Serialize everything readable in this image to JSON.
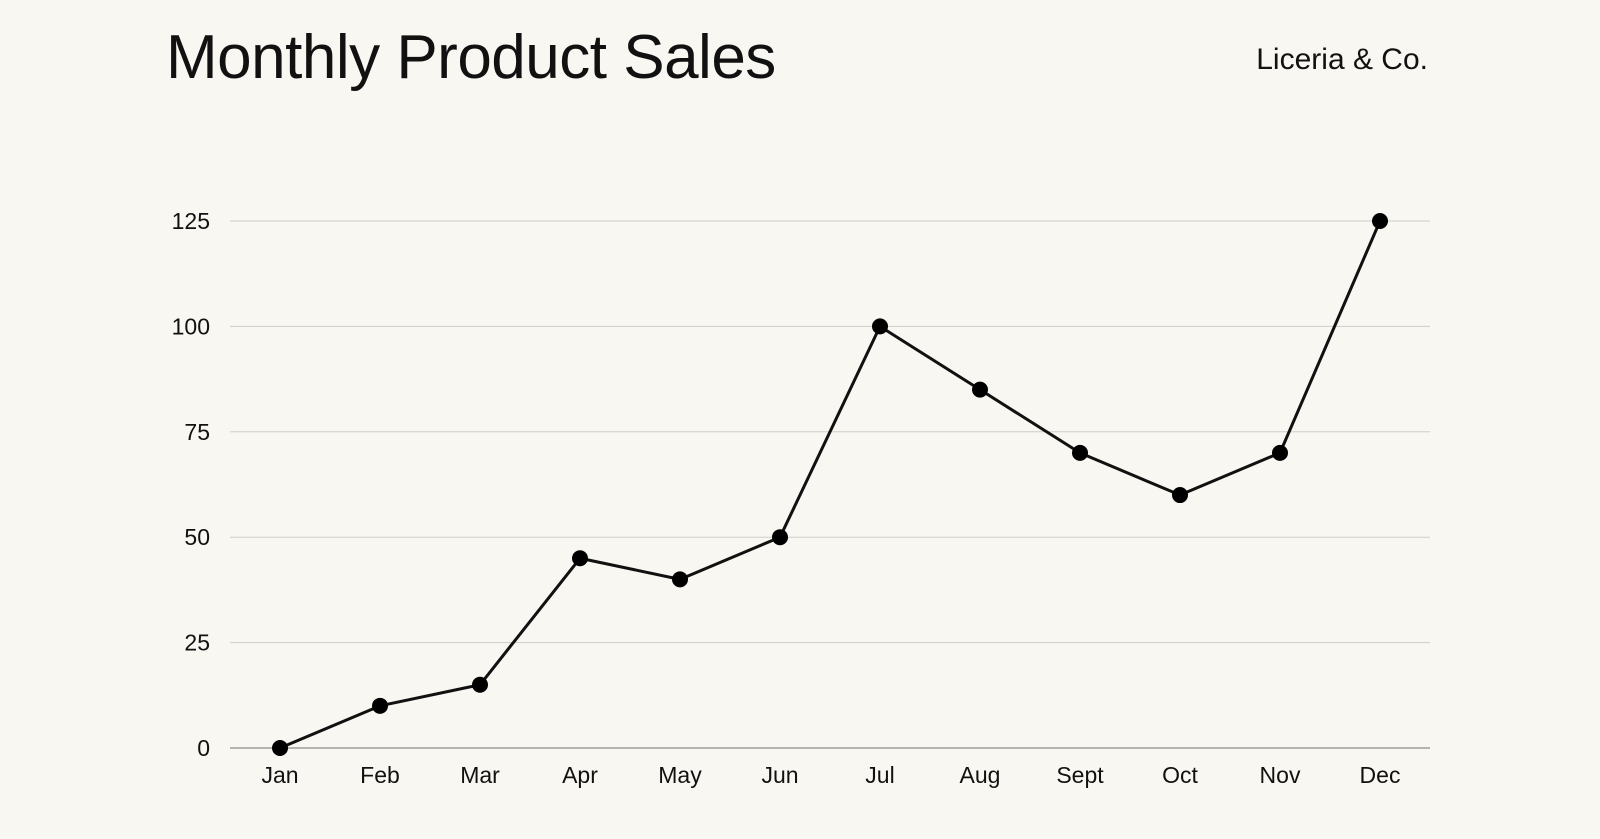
{
  "colors": {
    "background": "#f9f7f1",
    "line": "#111111",
    "marker": "#000000",
    "grid": "#cfcdc7",
    "axis": "#8e8c88",
    "text": "#111111"
  },
  "chart_data": {
    "type": "line",
    "title": "Monthly Product Sales",
    "brand": "Liceria & Co.",
    "categories": [
      "Jan",
      "Feb",
      "Mar",
      "Apr",
      "May",
      "Jun",
      "Jul",
      "Aug",
      "Sept",
      "Oct",
      "Nov",
      "Dec"
    ],
    "series": [
      {
        "values": [
          0,
          10,
          15,
          45,
          40,
          50,
          100,
          85,
          70,
          60,
          70,
          125
        ]
      }
    ],
    "yticks": [
      0,
      25,
      50,
      75,
      100,
      125
    ],
    "ylim": [
      0,
      125
    ],
    "xlabel": "",
    "ylabel": "",
    "grid": true,
    "legend": "none"
  }
}
